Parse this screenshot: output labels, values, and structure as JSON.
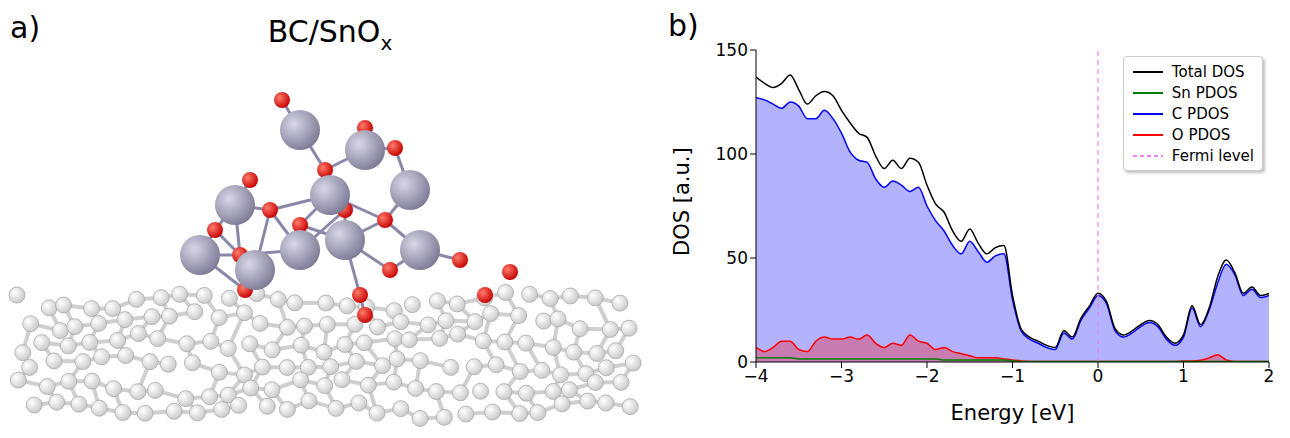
{
  "panel_a": {
    "label": "a)",
    "title": "BC/SnO",
    "title_subscript": "x"
  },
  "chart_data": {
    "type": "line",
    "panel_label": "b)",
    "x_label": "Energy [eV]",
    "y_label": "DOS [a.u.]",
    "x": [
      -4,
      -3.9,
      -3.8,
      -3.7,
      -3.6,
      -3.5,
      -3.4,
      -3.3,
      -3.2,
      -3.1,
      -3,
      -2.9,
      -2.8,
      -2.7,
      -2.6,
      -2.5,
      -2.4,
      -2.3,
      -2.2,
      -2.1,
      -2,
      -1.9,
      -1.8,
      -1.7,
      -1.6,
      -1.5,
      -1.4,
      -1.3,
      -1.2,
      -1.1,
      -1,
      -0.9,
      -0.8,
      -0.7,
      -0.6,
      -0.5,
      -0.4,
      -0.3,
      -0.2,
      -0.1,
      0,
      0.1,
      0.2,
      0.3,
      0.4,
      0.5,
      0.6,
      0.7,
      0.8,
      0.9,
      1,
      1.1,
      1.2,
      1.3,
      1.4,
      1.5,
      1.6,
      1.7,
      1.8,
      1.9,
      2
    ],
    "xlim": [
      -4,
      2
    ],
    "xticks": [
      {
        "value": -4,
        "label": "−4"
      },
      {
        "value": -3,
        "label": "−3"
      },
      {
        "value": -2,
        "label": "−2"
      },
      {
        "value": -1,
        "label": "−1"
      },
      0,
      1,
      2
    ],
    "ylim": [
      0,
      150
    ],
    "yticks": [
      0,
      50,
      100,
      150
    ],
    "grid": false,
    "legend": "upper right",
    "series": [
      {
        "name": "Total DOS",
        "type": "line",
        "color": "#000000",
        "values": [
          137,
          134,
          132,
          134,
          138,
          131,
          124,
          128,
          130,
          128,
          121,
          115,
          110,
          108,
          99,
          93,
          97,
          93,
          98,
          96,
          85,
          76,
          72,
          63,
          58,
          64,
          57,
          52,
          55,
          56,
          32,
          16,
          12,
          10,
          8,
          7,
          15,
          12,
          21,
          27,
          33,
          29,
          16,
          13,
          15,
          18,
          20,
          18,
          12,
          9,
          13,
          27,
          18,
          26,
          41,
          49,
          43,
          33,
          36,
          32,
          33
        ]
      },
      {
        "name": "Sn PDOS",
        "type": "line",
        "color": "#008000",
        "values": [
          2,
          2,
          2,
          2,
          2,
          1.5,
          1.5,
          1.5,
          1.5,
          1.5,
          1.5,
          1.5,
          1.5,
          1.5,
          1.5,
          1.5,
          1.5,
          1.5,
          1.5,
          1.5,
          1.5,
          1.5,
          1,
          1,
          1,
          1,
          1,
          1,
          1,
          1,
          0.5,
          0.2,
          0.2,
          0.2,
          0.2,
          0.2,
          0.2,
          0.2,
          0.2,
          0.2,
          0.2,
          0.2,
          0.2,
          0.2,
          0.2,
          0.2,
          0.2,
          0.2,
          0.2,
          0.2,
          0.2,
          0.2,
          0.2,
          0.2,
          0.2,
          0.2,
          0.2,
          0.2,
          0.2,
          0.2,
          0.2
        ]
      },
      {
        "name": "C PDOS",
        "type": "area",
        "color": "#0000ff",
        "values": [
          127,
          126,
          124,
          122,
          125,
          123,
          117,
          117,
          121,
          117,
          110,
          101,
          97,
          96,
          88,
          84,
          87,
          85,
          82,
          84,
          75,
          68,
          63,
          56,
          52,
          58,
          53,
          48,
          51,
          52,
          30,
          15,
          11,
          9,
          7,
          6,
          14,
          11,
          20,
          26,
          32,
          28,
          15,
          12,
          14,
          17,
          19,
          17,
          11,
          8,
          12,
          26,
          17,
          25,
          38,
          47,
          42,
          32,
          35,
          31,
          32
        ]
      },
      {
        "name": "O PDOS",
        "type": "area",
        "color": "#ff0000",
        "values": [
          7,
          5,
          7,
          10,
          10,
          6,
          5,
          10,
          12,
          11,
          11,
          12,
          11,
          13,
          9,
          7,
          9,
          8,
          13,
          10,
          9,
          6,
          7,
          5,
          4,
          3,
          2,
          2,
          2,
          1.5,
          1,
          0.5,
          0.3,
          0.3,
          0.3,
          0.3,
          0.3,
          0.3,
          0.3,
          0.3,
          0.3,
          0.3,
          0.3,
          0.3,
          0.3,
          0.3,
          0.3,
          0.3,
          0.3,
          0.3,
          0.5,
          0.5,
          0.8,
          2,
          3.5,
          1,
          0.3,
          0.3,
          0.3,
          0.3,
          0.3
        ]
      }
    ],
    "vlines": [
      {
        "name": "Fermi level",
        "x": 0,
        "color": "#ee82ee",
        "line_style": "dashed"
      }
    ]
  }
}
